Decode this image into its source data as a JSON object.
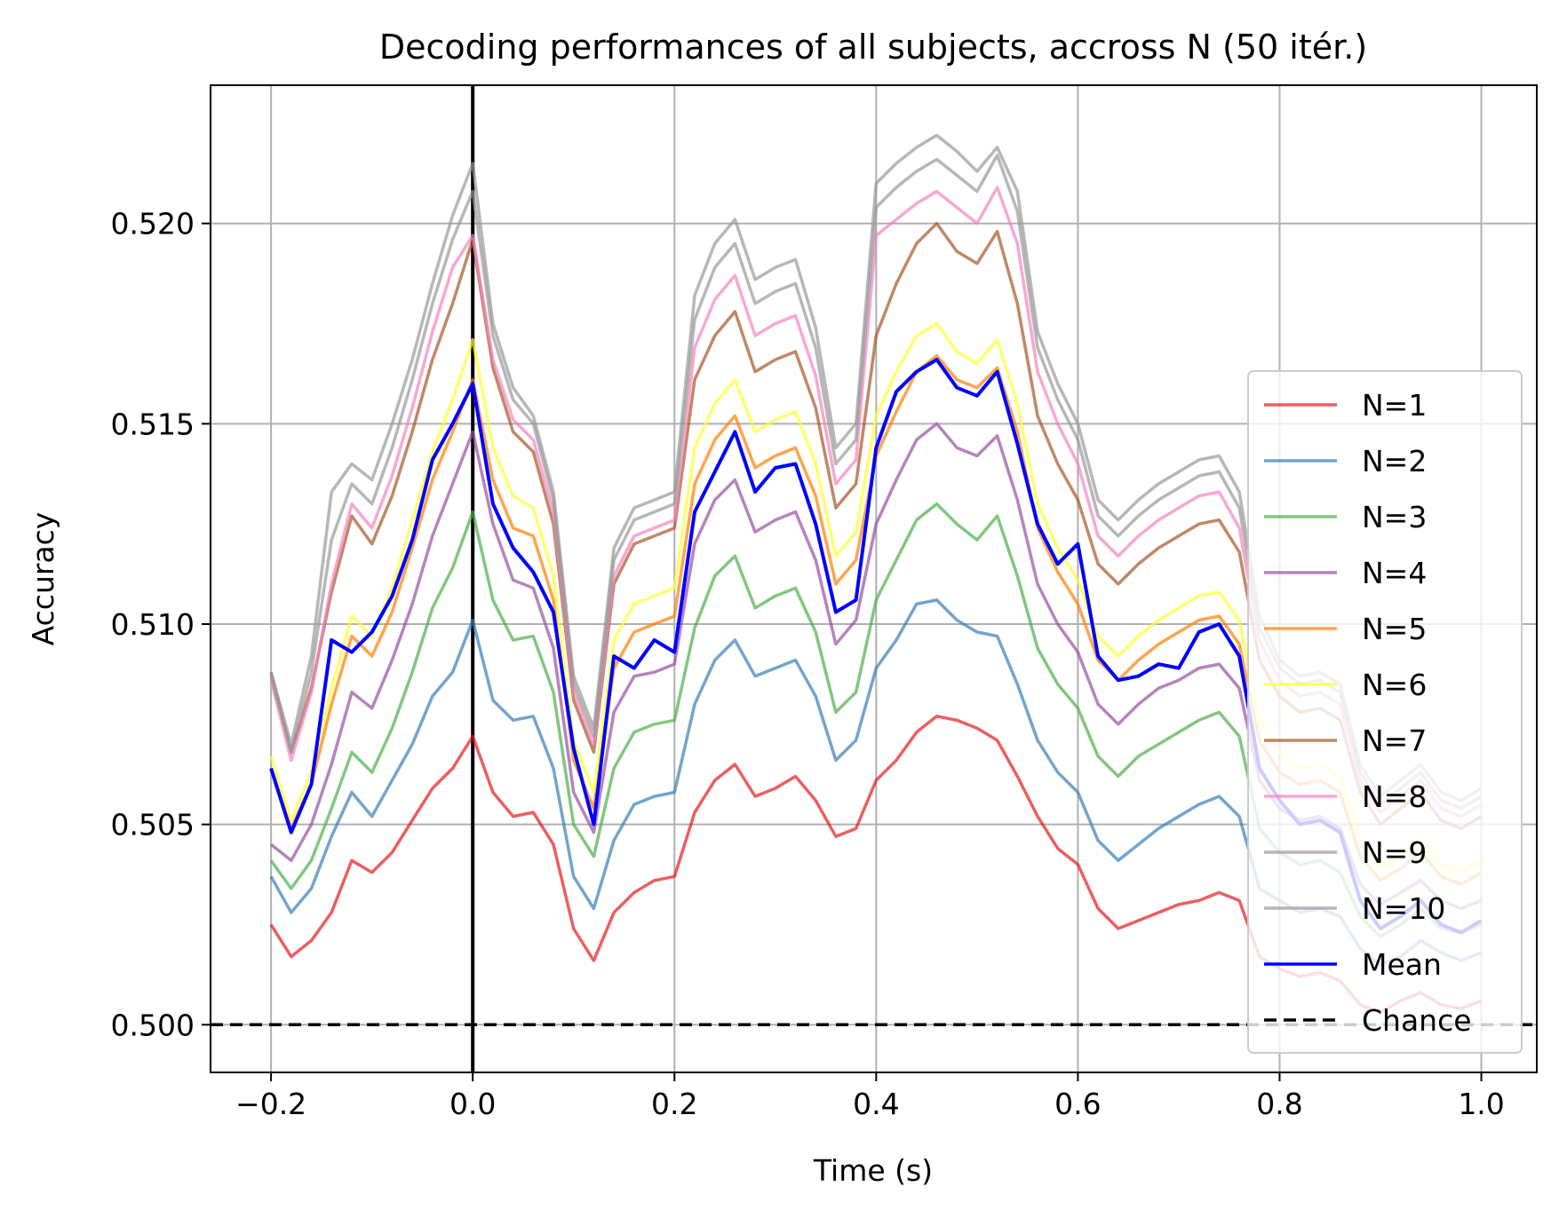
{
  "chart_data": {
    "type": "line",
    "title": "Decoding performances of all subjects, accross N (50 itér.)",
    "xlabel": "Time (s)",
    "ylabel": "Accuracy",
    "xlim": [
      -0.26,
      1.055
    ],
    "ylim": [
      0.49881,
      0.52345
    ],
    "x_ticks": [
      -0.2,
      0.0,
      0.2,
      0.4,
      0.6,
      0.8,
      1.0
    ],
    "x_tick_labels": [
      "−0.2",
      "0.0",
      "0.2",
      "0.4",
      "0.6",
      "0.8",
      "1.0"
    ],
    "y_ticks": [
      0.5,
      0.505,
      0.51,
      0.515,
      0.52
    ],
    "y_tick_labels": [
      "0.500",
      "0.505",
      "0.510",
      "0.515",
      "0.520"
    ],
    "grid": true,
    "legend_position": "lower-right",
    "x": [
      -0.2,
      -0.18,
      -0.16,
      -0.14,
      -0.12,
      -0.1,
      -0.08,
      -0.06,
      -0.04,
      -0.02,
      0.0,
      0.02,
      0.04,
      0.06,
      0.08,
      0.1,
      0.12,
      0.14,
      0.16,
      0.18,
      0.2,
      0.22,
      0.24,
      0.26,
      0.28,
      0.3,
      0.32,
      0.34,
      0.36,
      0.38,
      0.4,
      0.42,
      0.44,
      0.46,
      0.48,
      0.5,
      0.52,
      0.54,
      0.56,
      0.58,
      0.6,
      0.62,
      0.64,
      0.66,
      0.68,
      0.7,
      0.72,
      0.74,
      0.76,
      0.78,
      0.8,
      0.82,
      0.84,
      0.86,
      0.88,
      0.9,
      0.92,
      0.94,
      0.96,
      0.98,
      1.0
    ],
    "series": [
      {
        "name": "N=1",
        "color": "#e41a1c",
        "values": [
          0.5025,
          0.5017,
          0.5021,
          0.5028,
          0.5041,
          0.5038,
          0.5043,
          0.5051,
          0.5059,
          0.5064,
          0.5072,
          0.5058,
          0.5052,
          0.5053,
          0.5045,
          0.5024,
          0.5016,
          0.5028,
          0.5033,
          0.5036,
          0.5037,
          0.5053,
          0.5061,
          0.5065,
          0.5057,
          0.5059,
          0.5062,
          0.5056,
          0.5047,
          0.5049,
          0.5061,
          0.5066,
          0.5073,
          0.5077,
          0.5076,
          0.5074,
          0.5071,
          0.5062,
          0.5052,
          0.5044,
          0.504,
          0.5029,
          0.5024,
          0.5026,
          0.5028,
          0.503,
          0.5031,
          0.5033,
          0.5031,
          0.5017,
          0.5014,
          0.5012,
          0.5013,
          0.5011,
          0.5005,
          0.5003,
          0.5006,
          0.5008,
          0.5005,
          0.5004,
          0.5006
        ]
      },
      {
        "name": "N=2",
        "color": "#377eb8",
        "values": [
          0.5037,
          0.5028,
          0.5034,
          0.5047,
          0.5058,
          0.5052,
          0.5061,
          0.507,
          0.5082,
          0.5088,
          0.5101,
          0.5081,
          0.5076,
          0.5077,
          0.5064,
          0.5037,
          0.5029,
          0.5046,
          0.5055,
          0.5057,
          0.5058,
          0.508,
          0.5091,
          0.5096,
          0.5087,
          0.5089,
          0.5091,
          0.5082,
          0.5066,
          0.5071,
          0.5089,
          0.5096,
          0.5105,
          0.5106,
          0.5101,
          0.5098,
          0.5097,
          0.5085,
          0.5071,
          0.5063,
          0.5058,
          0.5046,
          0.5041,
          0.5045,
          0.5049,
          0.5052,
          0.5055,
          0.5057,
          0.5052,
          0.5034,
          0.5031,
          0.5028,
          0.5029,
          0.5027,
          0.5019,
          0.5015,
          0.5017,
          0.5021,
          0.5018,
          0.5016,
          0.5018
        ]
      },
      {
        "name": "N=3",
        "color": "#4daf4a",
        "values": [
          0.5041,
          0.5034,
          0.5041,
          0.5054,
          0.5068,
          0.5063,
          0.5074,
          0.5088,
          0.5104,
          0.5114,
          0.5128,
          0.5106,
          0.5096,
          0.5097,
          0.5083,
          0.505,
          0.5042,
          0.5064,
          0.5073,
          0.5075,
          0.5076,
          0.5099,
          0.5112,
          0.5117,
          0.5104,
          0.5107,
          0.5109,
          0.5098,
          0.5078,
          0.5083,
          0.5106,
          0.5116,
          0.5126,
          0.513,
          0.5125,
          0.5121,
          0.5127,
          0.5112,
          0.5094,
          0.5085,
          0.5079,
          0.5067,
          0.5062,
          0.5067,
          0.507,
          0.5073,
          0.5076,
          0.5078,
          0.5072,
          0.5049,
          0.5043,
          0.504,
          0.5041,
          0.5038,
          0.5027,
          0.5022,
          0.5025,
          0.5029,
          0.5024,
          0.5023,
          0.5025
        ]
      },
      {
        "name": "N=4",
        "color": "#984ea3",
        "values": [
          0.5045,
          0.5041,
          0.505,
          0.5065,
          0.5083,
          0.5079,
          0.5091,
          0.5105,
          0.5122,
          0.5135,
          0.5148,
          0.5125,
          0.5111,
          0.5109,
          0.5094,
          0.5058,
          0.5048,
          0.5078,
          0.5087,
          0.5088,
          0.509,
          0.512,
          0.5131,
          0.5136,
          0.5123,
          0.5126,
          0.5128,
          0.5116,
          0.5095,
          0.5101,
          0.5125,
          0.5136,
          0.5146,
          0.515,
          0.5144,
          0.5142,
          0.5147,
          0.5131,
          0.511,
          0.51,
          0.5093,
          0.508,
          0.5075,
          0.508,
          0.5084,
          0.5086,
          0.5089,
          0.509,
          0.5084,
          0.5061,
          0.5054,
          0.5051,
          0.5052,
          0.5049,
          0.5035,
          0.503,
          0.5033,
          0.5036,
          0.5031,
          0.5029,
          0.5031
        ]
      },
      {
        "name": "N=5",
        "color": "#ff7f00",
        "values": [
          0.5064,
          0.5049,
          0.506,
          0.508,
          0.5097,
          0.5092,
          0.5103,
          0.5119,
          0.5136,
          0.5148,
          0.5161,
          0.5136,
          0.5124,
          0.5122,
          0.5106,
          0.5066,
          0.5054,
          0.5089,
          0.5098,
          0.51,
          0.5102,
          0.5135,
          0.5146,
          0.5152,
          0.5139,
          0.5142,
          0.5144,
          0.5132,
          0.511,
          0.5116,
          0.5142,
          0.5153,
          0.5163,
          0.5167,
          0.5161,
          0.5159,
          0.5164,
          0.5148,
          0.5124,
          0.5113,
          0.5105,
          0.5091,
          0.5086,
          0.5091,
          0.5095,
          0.5098,
          0.5101,
          0.5102,
          0.5095,
          0.5071,
          0.5063,
          0.506,
          0.5061,
          0.5058,
          0.5042,
          0.5036,
          0.5039,
          0.5043,
          0.5037,
          0.5035,
          0.5038
        ]
      },
      {
        "name": "N=6",
        "color": "#ffff33",
        "values": [
          0.5067,
          0.5051,
          0.5063,
          0.5084,
          0.5102,
          0.5097,
          0.5109,
          0.5126,
          0.5143,
          0.5156,
          0.5171,
          0.5144,
          0.5132,
          0.5129,
          0.5112,
          0.5071,
          0.5058,
          0.5096,
          0.5105,
          0.5107,
          0.5109,
          0.5144,
          0.5155,
          0.5161,
          0.5148,
          0.5151,
          0.5153,
          0.514,
          0.5117,
          0.5123,
          0.5152,
          0.5163,
          0.5172,
          0.5175,
          0.5168,
          0.5165,
          0.5171,
          0.5155,
          0.513,
          0.5119,
          0.5111,
          0.5097,
          0.5092,
          0.5097,
          0.5101,
          0.5104,
          0.5107,
          0.5108,
          0.5101,
          0.5076,
          0.5068,
          0.5064,
          0.5065,
          0.5062,
          0.5046,
          0.5039,
          0.5042,
          0.5046,
          0.504,
          0.5038,
          0.5041
        ]
      },
      {
        "name": "N=7",
        "color": "#a65628",
        "values": [
          0.5088,
          0.5068,
          0.5084,
          0.5108,
          0.5127,
          0.512,
          0.5132,
          0.5148,
          0.5166,
          0.518,
          0.5196,
          0.5164,
          0.5148,
          0.5143,
          0.5125,
          0.5081,
          0.5068,
          0.511,
          0.512,
          0.5122,
          0.5124,
          0.5161,
          0.5172,
          0.5178,
          0.5163,
          0.5166,
          0.5168,
          0.5154,
          0.5129,
          0.5135,
          0.5172,
          0.5185,
          0.5195,
          0.52,
          0.5193,
          0.519,
          0.5198,
          0.518,
          0.5152,
          0.514,
          0.5131,
          0.5115,
          0.511,
          0.5115,
          0.5119,
          0.5122,
          0.5125,
          0.5126,
          0.5118,
          0.5091,
          0.5082,
          0.5078,
          0.5079,
          0.5076,
          0.5058,
          0.505,
          0.5054,
          0.5058,
          0.5051,
          0.5049,
          0.5052
        ]
      },
      {
        "name": "N=8",
        "color": "#f781bf",
        "values": [
          0.5086,
          0.5066,
          0.5083,
          0.511,
          0.513,
          0.5124,
          0.5137,
          0.5154,
          0.5173,
          0.5189,
          0.5197,
          0.5166,
          0.5151,
          0.5146,
          0.5128,
          0.5083,
          0.507,
          0.5112,
          0.5122,
          0.5124,
          0.5126,
          0.5169,
          0.5181,
          0.5187,
          0.5172,
          0.5175,
          0.5177,
          0.5162,
          0.5135,
          0.5141,
          0.5197,
          0.5201,
          0.5205,
          0.5208,
          0.5204,
          0.52,
          0.5209,
          0.5195,
          0.5163,
          0.515,
          0.514,
          0.5122,
          0.5117,
          0.5122,
          0.5126,
          0.5129,
          0.5132,
          0.5133,
          0.5124,
          0.5096,
          0.5086,
          0.5082,
          0.5083,
          0.508,
          0.5061,
          0.5053,
          0.5057,
          0.5061,
          0.5054,
          0.5052,
          0.5055
        ]
      },
      {
        "name": "N=9",
        "color": "#999999",
        "values": [
          0.5087,
          0.5068,
          0.5088,
          0.5121,
          0.5135,
          0.513,
          0.5144,
          0.5161,
          0.518,
          0.5196,
          0.5208,
          0.5172,
          0.5156,
          0.515,
          0.5131,
          0.5085,
          0.5072,
          0.5116,
          0.5126,
          0.5128,
          0.513,
          0.5176,
          0.5189,
          0.5195,
          0.518,
          0.5183,
          0.5185,
          0.5169,
          0.514,
          0.5146,
          0.5204,
          0.5209,
          0.5213,
          0.5216,
          0.5212,
          0.5208,
          0.5217,
          0.5203,
          0.5169,
          0.5156,
          0.5146,
          0.5127,
          0.5122,
          0.5127,
          0.5131,
          0.5134,
          0.5137,
          0.5138,
          0.5129,
          0.5099,
          0.5089,
          0.5085,
          0.5086,
          0.5083,
          0.5063,
          0.5055,
          0.5059,
          0.5063,
          0.5056,
          0.5054,
          0.5057
        ]
      },
      {
        "name": "N=10",
        "color": "#999999",
        "values": [
          0.5088,
          0.507,
          0.5092,
          0.5133,
          0.514,
          0.5136,
          0.515,
          0.5166,
          0.5185,
          0.5202,
          0.5215,
          0.5175,
          0.5159,
          0.5152,
          0.5133,
          0.5087,
          0.5074,
          0.5119,
          0.5129,
          0.5131,
          0.5133,
          0.5182,
          0.5195,
          0.5201,
          0.5186,
          0.5189,
          0.5191,
          0.5174,
          0.5144,
          0.515,
          0.521,
          0.5215,
          0.5219,
          0.5222,
          0.5218,
          0.5213,
          0.5219,
          0.5208,
          0.5173,
          0.516,
          0.515,
          0.5131,
          0.5126,
          0.5131,
          0.5135,
          0.5138,
          0.5141,
          0.5142,
          0.5133,
          0.5102,
          0.5091,
          0.5087,
          0.5088,
          0.5085,
          0.5065,
          0.5057,
          0.5061,
          0.5065,
          0.5058,
          0.5056,
          0.5059
        ]
      },
      {
        "name": "Mean",
        "color": "#0000ff",
        "values": [
          0.5064,
          0.5048,
          0.506,
          0.5096,
          0.5093,
          0.5098,
          0.5107,
          0.5121,
          0.5141,
          0.515,
          0.516,
          0.513,
          0.5119,
          0.5113,
          0.5103,
          0.5069,
          0.505,
          0.5092,
          0.5089,
          0.5096,
          0.5093,
          0.5128,
          0.5138,
          0.5148,
          0.5133,
          0.5139,
          0.514,
          0.5125,
          0.5103,
          0.5106,
          0.5144,
          0.5158,
          0.5163,
          0.5166,
          0.5159,
          0.5157,
          0.5163,
          0.5145,
          0.5125,
          0.5115,
          0.512,
          0.5092,
          0.5086,
          0.5087,
          0.509,
          0.5089,
          0.5098,
          0.51,
          0.5092,
          0.5064,
          0.5056,
          0.505,
          0.5051,
          0.5048,
          0.5031,
          0.5024,
          0.5027,
          0.5031,
          0.5025,
          0.5023,
          0.5026
        ]
      },
      {
        "name": "Chance",
        "color": "#000000",
        "dashed": true,
        "y": 0.5
      }
    ],
    "vline_x": 0.0
  }
}
